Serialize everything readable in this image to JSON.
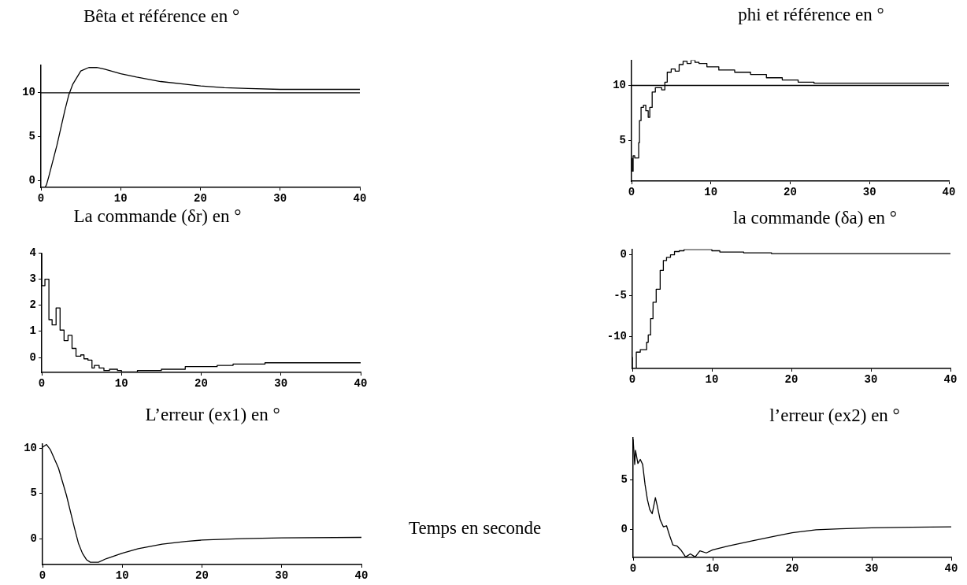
{
  "chart_data": [
    {
      "type": "line",
      "title": "Bêta et référence en °",
      "xlim": [
        0,
        40
      ],
      "xticks": [
        0,
        10,
        20,
        30,
        40
      ],
      "ylim": [
        -0.8,
        13.2
      ],
      "yticks": [
        0,
        5,
        10
      ],
      "series": [
        {
          "color": "#000000",
          "x": [
            0.5,
            0.7,
            1,
            2,
            3,
            3.5,
            4,
            5,
            6,
            7,
            8,
            10,
            12,
            15,
            18,
            20,
            23,
            26,
            30,
            40
          ],
          "values": [
            -0.8,
            -0.5,
            0.5,
            4,
            8,
            9.8,
            11,
            12.5,
            12.9,
            12.9,
            12.7,
            12.2,
            11.8,
            11.3,
            11,
            10.8,
            10.6,
            10.5,
            10.4,
            10.4
          ]
        },
        {
          "color": "#000000",
          "x": [
            0,
            40
          ],
          "values": [
            10,
            10
          ]
        }
      ]
    },
    {
      "type": "step",
      "title": "phi et référence en °",
      "xlim": [
        0,
        40
      ],
      "xticks": [
        0,
        10,
        20,
        30,
        40
      ],
      "ylim": [
        1.3,
        12.3
      ],
      "yticks": [
        5,
        10
      ],
      "series": [
        {
          "color": "#000000",
          "x": [
            0.1,
            0.2,
            0.4,
            0.6,
            0.9,
            1,
            1.2,
            1.5,
            1.8,
            2.1,
            2.3,
            2.6,
            3,
            3.3,
            3.8,
            4.2,
            4.5,
            5,
            5.5,
            6,
            6.5,
            7,
            7.5,
            8,
            8.5,
            9.5,
            11,
            13,
            15,
            17,
            19,
            21,
            23,
            25,
            28,
            32,
            40
          ],
          "values": [
            3.4,
            2.2,
            3.6,
            3.4,
            3.4,
            4.8,
            6.8,
            8,
            8.2,
            7.7,
            7.1,
            8,
            9.4,
            9.8,
            9.8,
            9.6,
            10.3,
            11.2,
            11.5,
            11.3,
            11.9,
            12.2,
            12,
            12.3,
            12.1,
            12,
            11.7,
            11.4,
            11.2,
            11,
            10.7,
            10.5,
            10.3,
            10.2,
            10.2,
            10.2,
            10.2
          ]
        },
        {
          "type": "line",
          "color": "#000000",
          "x": [
            0,
            40
          ],
          "values": [
            10,
            10
          ]
        }
      ]
    },
    {
      "type": "step",
      "title": "La commande (δr) en °",
      "xlim": [
        0,
        40
      ],
      "xticks": [
        0,
        10,
        20,
        30,
        40
      ],
      "ylim": [
        -0.57,
        4
      ],
      "yticks": [
        0,
        1,
        2,
        3,
        4
      ],
      "series": [
        {
          "color": "#000000",
          "x": [
            0,
            0.4,
            0.9,
            1.3,
            1.8,
            2.3,
            2.8,
            3.3,
            3.8,
            4.3,
            4.9,
            5.3,
            5.8,
            6.3,
            6.6,
            7.2,
            7.8,
            8.5,
            9.5,
            10,
            12,
            15,
            18,
            20,
            22,
            24,
            26,
            28,
            30,
            32,
            35,
            38,
            40
          ],
          "values": [
            4,
            2.75,
            3,
            1.45,
            1.25,
            1.9,
            1.05,
            0.65,
            0.85,
            0.35,
            0.05,
            0.1,
            -0.05,
            -0.1,
            -0.4,
            -0.3,
            -0.4,
            -0.5,
            -0.45,
            -0.5,
            -0.55,
            -0.5,
            -0.45,
            -0.35,
            -0.35,
            -0.3,
            -0.25,
            -0.25,
            -0.2,
            -0.2,
            -0.2,
            -0.2,
            -0.2
          ]
        }
      ]
    },
    {
      "type": "step",
      "title": "la commande (δa) en °",
      "xlim": [
        0,
        40
      ],
      "xticks": [
        0,
        10,
        20,
        30,
        40
      ],
      "ylim": [
        -13.9,
        0.7
      ],
      "yticks": [
        -10,
        -5,
        0
      ],
      "series": [
        {
          "color": "#000000",
          "x": [
            0,
            0.5,
            1,
            1.8,
            2,
            2.3,
            2.6,
            3,
            3.5,
            3.9,
            4.3,
            4.8,
            5.3,
            5.9,
            6.5,
            7.5,
            10,
            11,
            14,
            17.5,
            22,
            30,
            40
          ],
          "values": [
            -12.5,
            -13.9,
            -11.9,
            -11.6,
            -10.7,
            -9.8,
            -7.8,
            -5.8,
            -4.2,
            -1.9,
            -0.7,
            -0.3,
            0,
            0.4,
            0.5,
            0.65,
            0.65,
            0.5,
            0.35,
            0.25,
            0.15,
            0.15,
            0.15
          ]
        }
      ]
    },
    {
      "type": "line",
      "title": "L’erreur (ex1) en °",
      "xlim": [
        0,
        40
      ],
      "xticks": [
        0,
        10,
        20,
        30,
        40
      ],
      "ylim": [
        -2.85,
        10.5
      ],
      "yticks": [
        0,
        5,
        10
      ],
      "series": [
        {
          "color": "#000000",
          "x": [
            0,
            0.5,
            1,
            2,
            3,
            4,
            4.5,
            5,
            5.5,
            6,
            7,
            8,
            10,
            12,
            15,
            18,
            20,
            25,
            30,
            40
          ],
          "values": [
            10.1,
            10.4,
            9.8,
            7.8,
            4.8,
            1.2,
            -0.5,
            -1.6,
            -2.3,
            -2.6,
            -2.6,
            -2.2,
            -1.6,
            -1.1,
            -0.6,
            -0.3,
            -0.15,
            0,
            0.1,
            0.15
          ]
        }
      ]
    },
    {
      "type": "line",
      "title": "l’erreur (ex2) en °",
      "annotations": [
        "Temps en seconde"
      ],
      "xlim": [
        0,
        40
      ],
      "xticks": [
        0,
        10,
        20,
        30,
        40
      ],
      "ylim": [
        -2.75,
        9.2
      ],
      "yticks": [
        0,
        5
      ],
      "series": [
        {
          "color": "#000000",
          "x": [
            0,
            0.2,
            0.3,
            0.6,
            0.9,
            1.2,
            1.5,
            1.8,
            2.1,
            2.4,
            2.8,
            3,
            3.4,
            3.8,
            4.2,
            4.6,
            5,
            5.5,
            6,
            6.6,
            7.2,
            7.8,
            8.4,
            9.2,
            10,
            12,
            15,
            18,
            20,
            23,
            26,
            30,
            35,
            40
          ],
          "values": [
            9,
            6.5,
            7.9,
            6.6,
            7,
            6.5,
            4.5,
            3,
            2,
            1.6,
            3.2,
            2.5,
            1,
            0.3,
            0.4,
            -0.6,
            -1.5,
            -1.6,
            -2,
            -2.7,
            -2.4,
            -2.7,
            -2.1,
            -2.3,
            -2,
            -1.6,
            -1.1,
            -0.6,
            -0.3,
            0,
            0.1,
            0.2,
            0.25,
            0.3
          ]
        }
      ]
    }
  ]
}
